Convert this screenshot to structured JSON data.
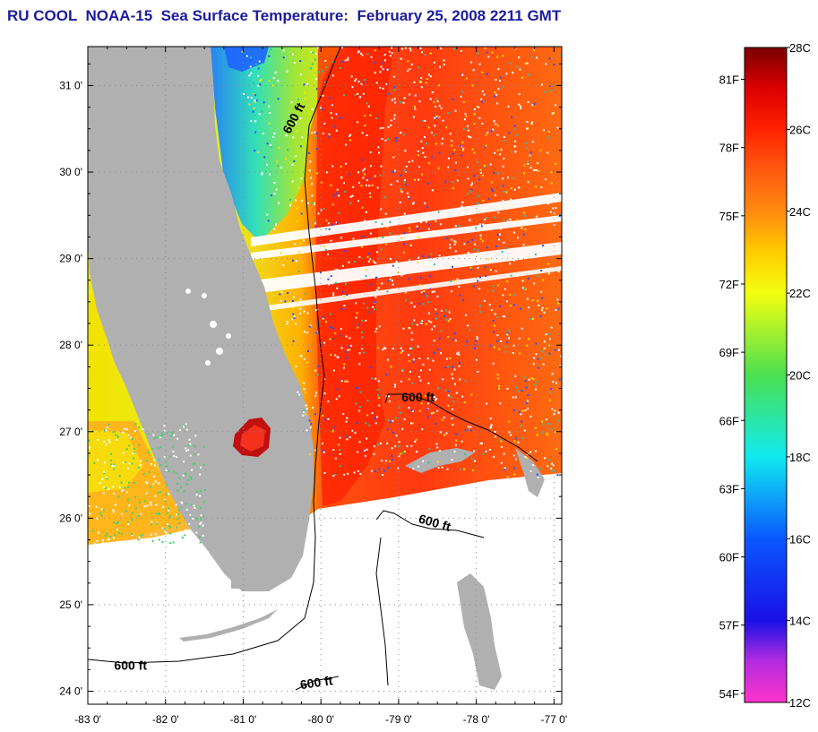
{
  "title": "RU COOL  NOAA-15  Sea Surface Temperature:  February 25, 2008 2211 GMT",
  "map": {
    "lon_range": [
      -83.0,
      -76.9
    ],
    "lat_range": [
      23.85,
      31.45
    ],
    "lat_ticks": [
      {
        "value": 31,
        "label": "31 0'"
      },
      {
        "value": 30,
        "label": "30 0'"
      },
      {
        "value": 29,
        "label": "29 0'"
      },
      {
        "value": 28,
        "label": "28 0'"
      },
      {
        "value": 27,
        "label": "27 0'"
      },
      {
        "value": 26,
        "label": "26 0'"
      },
      {
        "value": 25,
        "label": "25 0'"
      },
      {
        "value": 24,
        "label": "24 0'"
      }
    ],
    "lon_ticks": [
      {
        "value": -83,
        "label": "-83 0'"
      },
      {
        "value": -82,
        "label": "-82 0'"
      },
      {
        "value": -81,
        "label": "-81 0'"
      },
      {
        "value": -80,
        "label": "-80 0'"
      },
      {
        "value": -79,
        "label": "-79 0'"
      },
      {
        "value": -78,
        "label": "-78 0'"
      },
      {
        "value": -77,
        "label": "-77 0'"
      }
    ],
    "isobath_labels": [
      {
        "text": "600 ft",
        "lon": -80.3,
        "lat": 30.6,
        "angle": -62
      },
      {
        "text": "600 ft",
        "lon": -78.75,
        "lat": 27.35,
        "angle": 0
      },
      {
        "text": "600 ft",
        "lon": -78.55,
        "lat": 25.9,
        "angle": 16
      },
      {
        "text": "600 ft",
        "lon": -82.45,
        "lat": 24.25,
        "angle": 0
      },
      {
        "text": "600 ft",
        "lon": -80.05,
        "lat": 24.05,
        "angle": -8
      }
    ],
    "colors": {
      "land": "#b0b0b0",
      "nodata": "#ffffff",
      "grid": "#8a8a8a",
      "frame": "#000000",
      "contour": "#000000"
    }
  },
  "colorbar": {
    "celsius_range": [
      12,
      28
    ],
    "fahrenheit_labels": [
      "81F",
      "78F",
      "75F",
      "72F",
      "69F",
      "66F",
      "63F",
      "60F",
      "57F",
      "54F"
    ],
    "celsius_labels": [
      "28C",
      "26C",
      "24C",
      "22C",
      "20C",
      "18C",
      "16C",
      "14C",
      "12C"
    ],
    "fahrenheit_values": [
      81,
      78,
      75,
      72,
      69,
      66,
      63,
      60,
      57,
      54
    ],
    "celsius_values": [
      28,
      26,
      24,
      22,
      20,
      18,
      16,
      14,
      12
    ],
    "stops": [
      {
        "c": 12,
        "color": "#ff33cc"
      },
      {
        "c": 13,
        "color": "#b32ce0"
      },
      {
        "c": 14,
        "color": "#1a10e6"
      },
      {
        "c": 16,
        "color": "#0a58ff"
      },
      {
        "c": 18,
        "color": "#10eaf0"
      },
      {
        "c": 20,
        "color": "#4be050"
      },
      {
        "c": 22,
        "color": "#f4ff10"
      },
      {
        "c": 23,
        "color": "#ffcc00"
      },
      {
        "c": 24,
        "color": "#ff8a10"
      },
      {
        "c": 25,
        "color": "#ff5a10"
      },
      {
        "c": 26,
        "color": "#ff2200"
      },
      {
        "c": 27,
        "color": "#dc0000"
      },
      {
        "c": 28,
        "color": "#7a0000"
      }
    ]
  }
}
